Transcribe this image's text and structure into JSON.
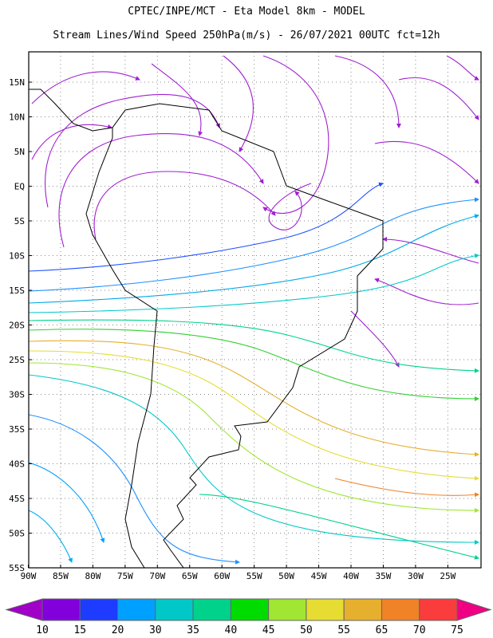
{
  "header": {
    "title": "CPTEC/INPE/MCT -  Eta Model 8km - MODEL",
    "subtitle": "Stream Lines/Wind Speed 250hPa(m/s) - 26/07/2021 00UTC fct=12h"
  },
  "map": {
    "lat_labels": [
      "15N",
      "10N",
      "5N",
      "EQ",
      "5S",
      "10S",
      "15S",
      "20S",
      "25S",
      "30S",
      "35S",
      "40S",
      "45S",
      "50S",
      "55S"
    ],
    "lon_labels": [
      "90W",
      "85W",
      "80W",
      "75W",
      "70W",
      "65W",
      "60W",
      "55W",
      "50W",
      "45W",
      "40W",
      "35W",
      "30W",
      "25W"
    ]
  },
  "colorbar": {
    "labels": [
      10,
      15,
      20,
      30,
      35,
      40,
      45,
      50,
      55,
      65,
      70,
      75
    ],
    "colors": [
      "#a000c8",
      "#8200dc",
      "#1e3cff",
      "#00a0ff",
      "#00c8c8",
      "#00d28c",
      "#00dc00",
      "#a0e632",
      "#e6dc32",
      "#e6af2d",
      "#f08228",
      "#fa3c3c",
      "#f00082"
    ]
  }
}
